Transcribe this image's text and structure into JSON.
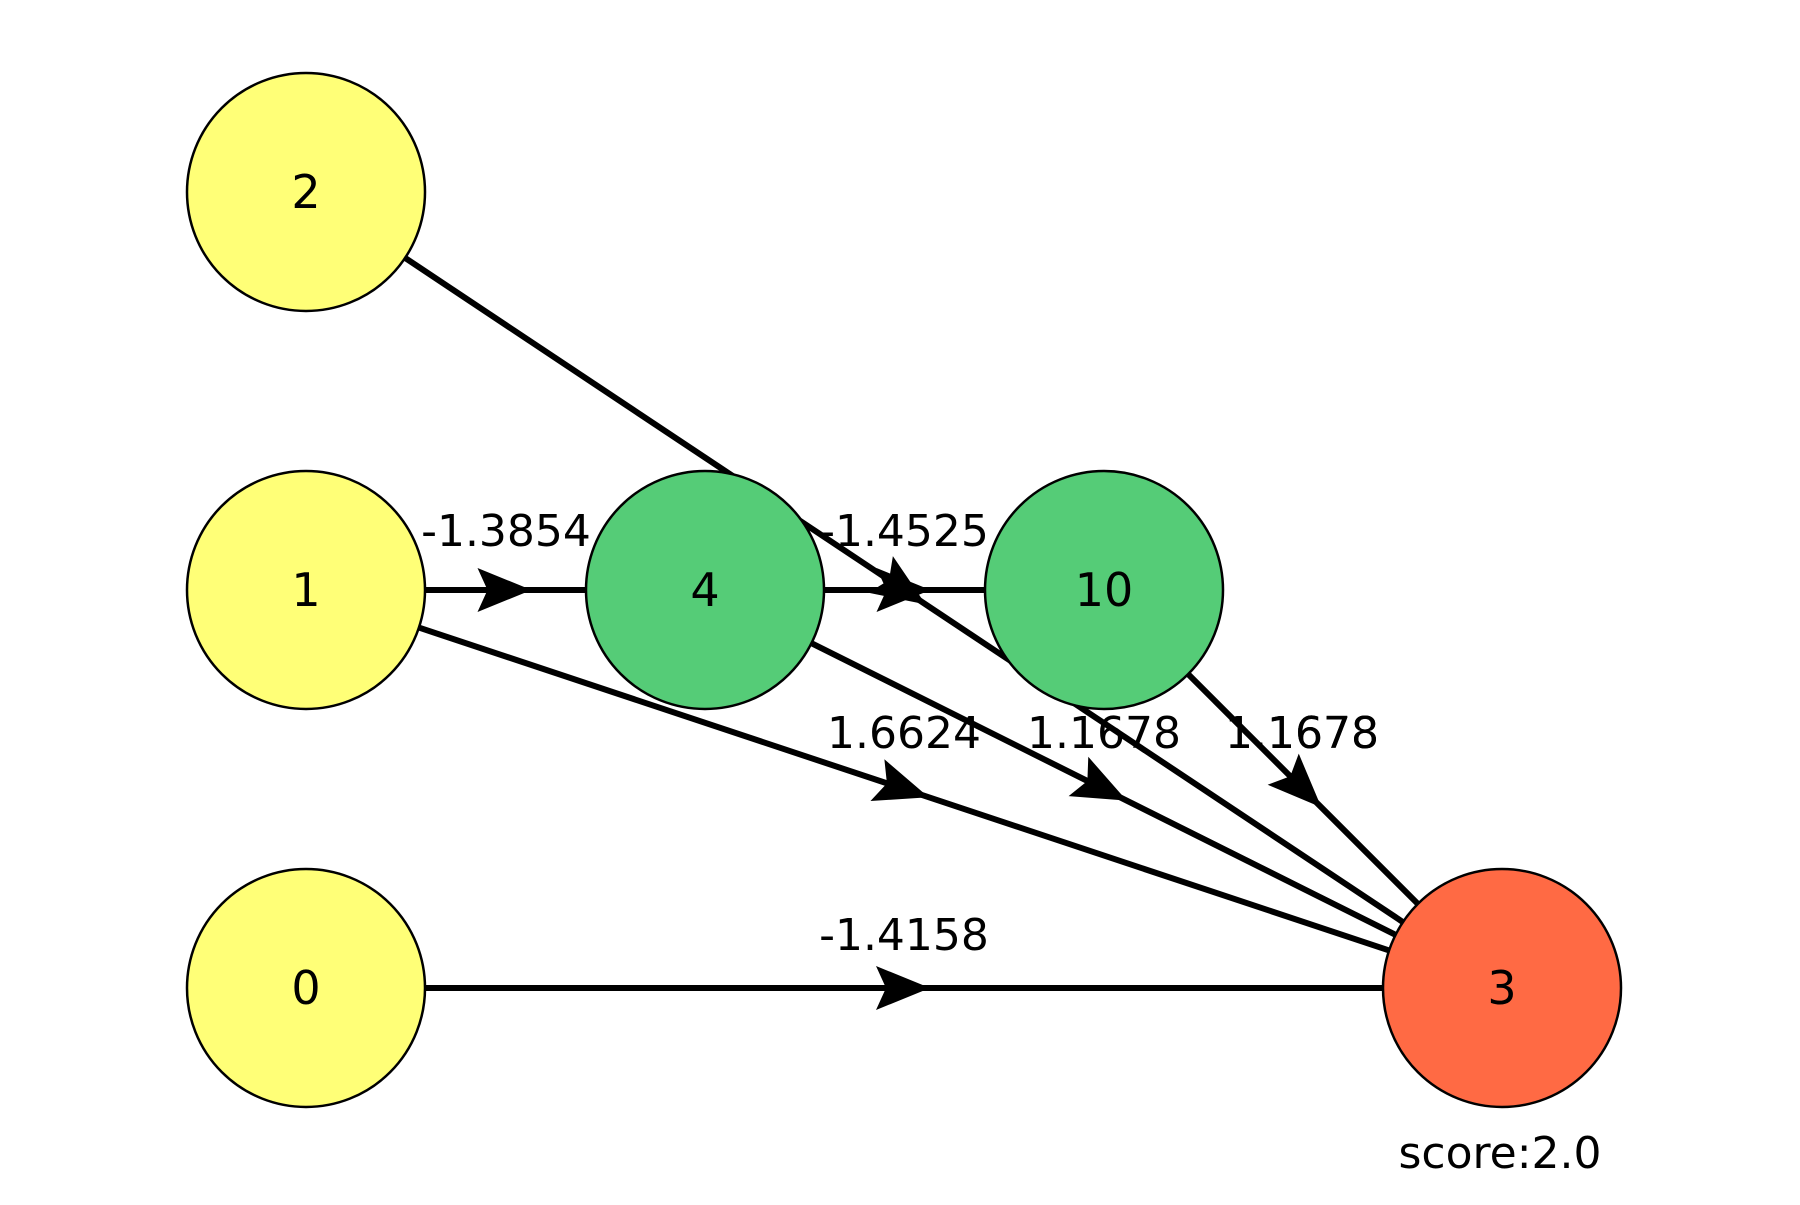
{
  "diagram": {
    "nodes": [
      {
        "id": "2",
        "label": "2",
        "role": "input"
      },
      {
        "id": "1",
        "label": "1",
        "role": "input"
      },
      {
        "id": "0",
        "label": "0",
        "role": "input"
      },
      {
        "id": "4",
        "label": "4",
        "role": "hidden"
      },
      {
        "id": "10",
        "label": "10",
        "role": "hidden"
      },
      {
        "id": "3",
        "label": "3",
        "role": "output"
      }
    ],
    "edges": [
      {
        "from": "1",
        "to": "4",
        "weight": "-1.3854"
      },
      {
        "from": "4",
        "to": "10",
        "weight": "-1.4525"
      },
      {
        "from": "2",
        "to": "3",
        "weight": "1.1678"
      },
      {
        "from": "1",
        "to": "3",
        "weight": "1.6624"
      },
      {
        "from": "4",
        "to": "3",
        "weight": "1.1678"
      },
      {
        "from": "10",
        "to": "3",
        "weight": "1.1678"
      },
      {
        "from": "0",
        "to": "3",
        "weight": "-1.4158"
      }
    ],
    "score": "score:2.0",
    "colors": {
      "input": "#ffff77",
      "hidden": "#55cc77",
      "output": "#ff6a44",
      "edge": "#000000"
    }
  }
}
